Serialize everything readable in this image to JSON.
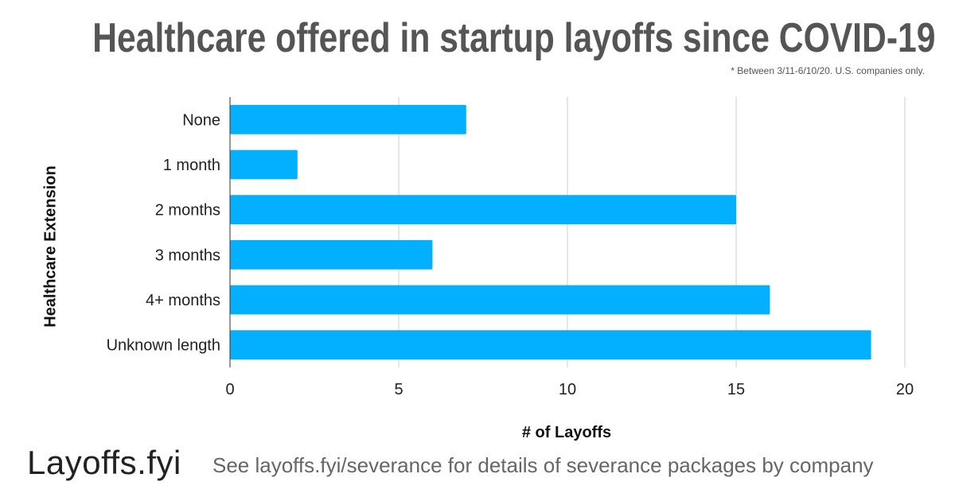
{
  "title": "Healthcare offered in startup layoffs since COVID-19",
  "note": "* Between 3/11-6/10/20. U.S. companies only.",
  "logo": "Layoffs.fyi",
  "footer": "See layoffs.fyi/severance for details of severance packages by company",
  "chart_data": {
    "type": "bar",
    "orientation": "horizontal",
    "categories": [
      "None",
      "1 month",
      "2 months",
      "3 months",
      "4+ months",
      "Unknown length"
    ],
    "values": [
      7,
      2,
      15,
      6,
      16,
      19
    ],
    "xlabel": "# of Layoffs",
    "ylabel": "Healthcare Extension",
    "xlim": [
      0,
      20
    ],
    "xticks": [
      "0",
      "5",
      "10",
      "15",
      "20"
    ],
    "grid": true,
    "bar_color": "#03AFFF"
  }
}
